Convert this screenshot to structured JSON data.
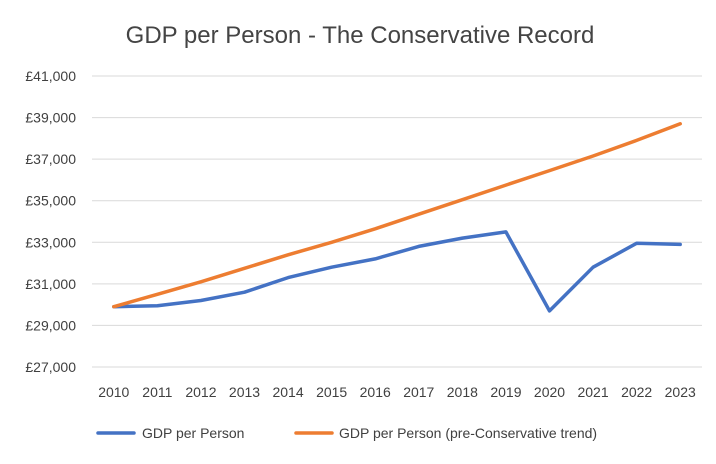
{
  "chart_data": {
    "type": "line",
    "title": "GDP per Person - The Conservative Record",
    "xlabel": "",
    "ylabel": "",
    "categories": [
      "2010",
      "2011",
      "2012",
      "2013",
      "2014",
      "2015",
      "2016",
      "2017",
      "2018",
      "2019",
      "2020",
      "2021",
      "2022",
      "2023"
    ],
    "ylim": [
      26000,
      41000
    ],
    "yticks": [
      27000,
      29000,
      31000,
      33000,
      35000,
      37000,
      39000,
      41000
    ],
    "ytick_labels": [
      "£27,000",
      "£29,000",
      "£31,000",
      "£33,000",
      "£35,000",
      "£37,000",
      "£39,000",
      "£41,000"
    ],
    "grid": true,
    "legend_position": "bottom",
    "series": [
      {
        "name": "GDP per Person",
        "color": "#4472C4",
        "values": [
          29900,
          29950,
          30200,
          30600,
          31300,
          31800,
          32200,
          32800,
          33200,
          33500,
          29700,
          31800,
          32950,
          32900
        ]
      },
      {
        "name": "GDP per Person (pre-Conservative trend)",
        "color": "#ED7D31",
        "values": [
          29900,
          30500,
          31100,
          31750,
          32400,
          33000,
          33650,
          34350,
          35050,
          35750,
          36450,
          37150,
          37900,
          38700
        ]
      }
    ]
  }
}
